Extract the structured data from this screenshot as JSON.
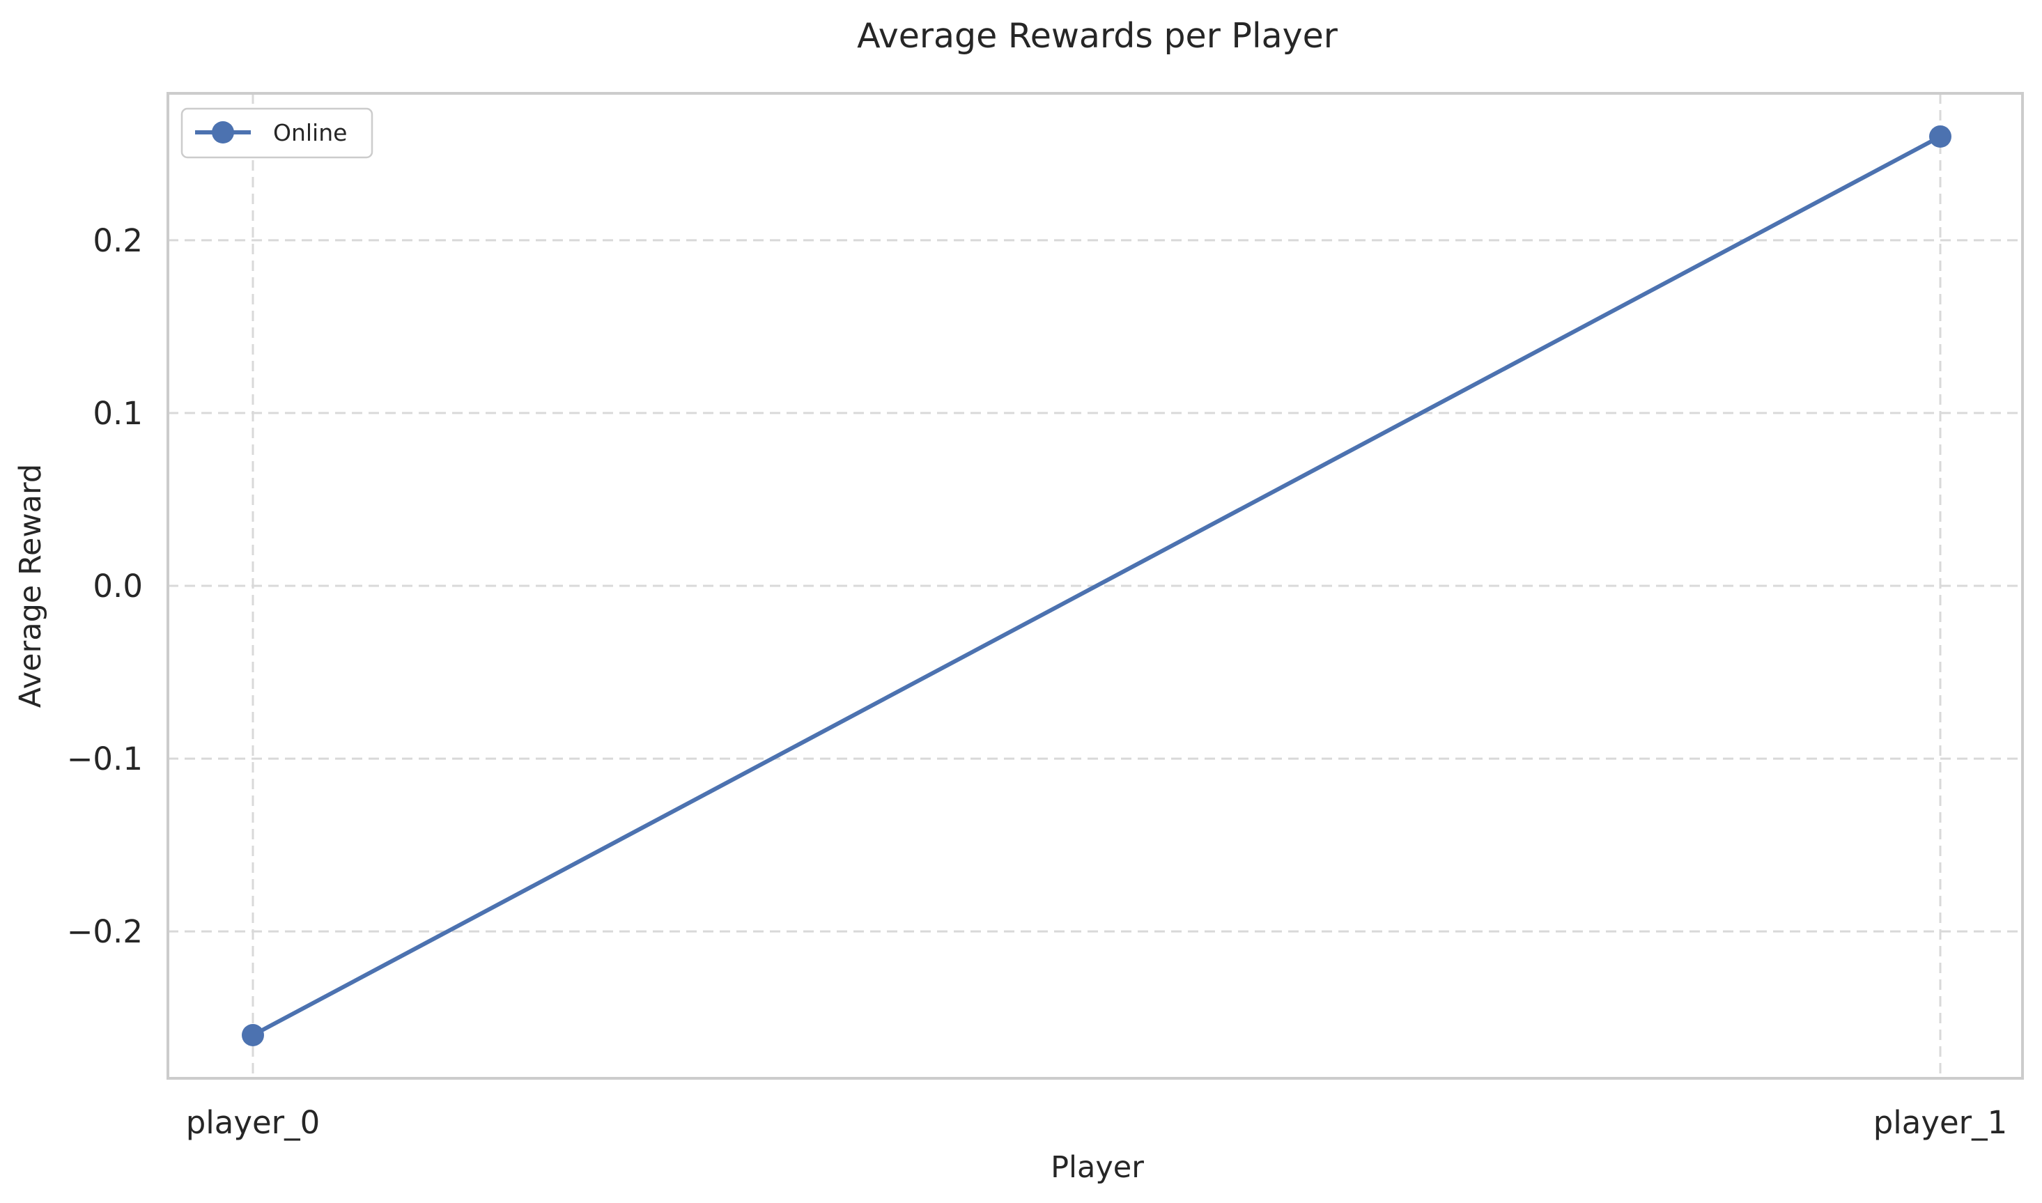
{
  "chart_data": {
    "type": "line",
    "title": "Average Rewards per Player",
    "xlabel": "Player",
    "ylabel": "Average Reward",
    "categories": [
      "player_0",
      "player_1"
    ],
    "series": [
      {
        "name": "Online",
        "values": [
          -0.26,
          0.26
        ],
        "color": "#4C72B0",
        "marker": "circle"
      }
    ],
    "ylim": [
      -0.285,
      0.285
    ],
    "y_ticks": [
      -0.2,
      -0.1,
      0.0,
      0.1,
      0.2
    ],
    "y_tick_labels": [
      "−0.2",
      "−0.1",
      "0.0",
      "0.1",
      "0.2"
    ],
    "grid": true,
    "grid_style": "dashed",
    "legend_position": "upper left"
  }
}
